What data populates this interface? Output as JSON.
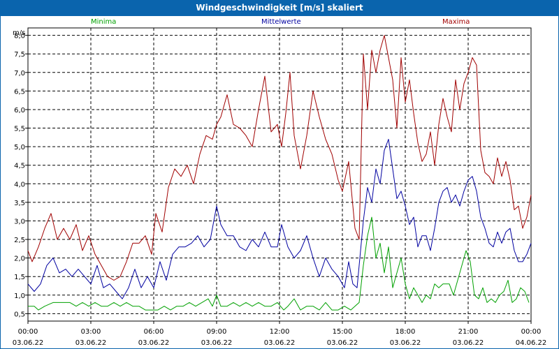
{
  "window": {
    "title": "Windgeschwindigkeit [m/s] skaliert"
  },
  "chart_data": {
    "type": "line",
    "title": "Windgeschwindigkeit [m/s] skaliert",
    "ylabel": "m/s",
    "xlabel": "",
    "ylim": [
      0.3,
      8.2
    ],
    "xlim_hours": [
      0,
      24
    ],
    "y_ticks": [
      "0,5",
      "1,0",
      "1,5",
      "2,0",
      "2,5",
      "3,0",
      "3,5",
      "4,0",
      "4,5",
      "5,0",
      "5,5",
      "6,0",
      "6,5",
      "7,0",
      "7,5",
      "8,0"
    ],
    "x_ticks": [
      {
        "time": "00:00",
        "date": "03.06.22"
      },
      {
        "time": "03:00",
        "date": "03.06.22"
      },
      {
        "time": "06:00",
        "date": "03.06.22"
      },
      {
        "time": "09:00",
        "date": "03.06.22"
      },
      {
        "time": "12:00",
        "date": "03.06.22"
      },
      {
        "time": "15:00",
        "date": "03.06.22"
      },
      {
        "time": "18:00",
        "date": "03.06.22"
      },
      {
        "time": "21:00",
        "date": "03.06.22"
      },
      {
        "time": "00:00",
        "date": "04.06.22"
      }
    ],
    "grid": true,
    "series": [
      {
        "name": "Minima",
        "color": "#00a000",
        "points": [
          [
            0,
            0.7
          ],
          [
            0.3,
            0.7
          ],
          [
            0.5,
            0.6
          ],
          [
            0.8,
            0.7
          ],
          [
            1.2,
            0.8
          ],
          [
            1.6,
            0.8
          ],
          [
            2.0,
            0.8
          ],
          [
            2.3,
            0.7
          ],
          [
            2.6,
            0.8
          ],
          [
            2.9,
            0.7
          ],
          [
            3.2,
            0.8
          ],
          [
            3.5,
            0.7
          ],
          [
            3.8,
            0.7
          ],
          [
            4.1,
            0.8
          ],
          [
            4.4,
            0.7
          ],
          [
            4.7,
            0.8
          ],
          [
            5.0,
            0.7
          ],
          [
            5.3,
            0.7
          ],
          [
            5.6,
            0.6
          ],
          [
            5.9,
            0.6
          ],
          [
            6.2,
            0.6
          ],
          [
            6.5,
            0.7
          ],
          [
            6.8,
            0.6
          ],
          [
            7.1,
            0.7
          ],
          [
            7.4,
            0.7
          ],
          [
            7.7,
            0.8
          ],
          [
            8.0,
            0.7
          ],
          [
            8.3,
            0.8
          ],
          [
            8.6,
            0.9
          ],
          [
            8.8,
            0.7
          ],
          [
            9.0,
            1.0
          ],
          [
            9.2,
            0.7
          ],
          [
            9.5,
            0.7
          ],
          [
            9.8,
            0.8
          ],
          [
            10.1,
            0.7
          ],
          [
            10.4,
            0.8
          ],
          [
            10.7,
            0.7
          ],
          [
            11.0,
            0.8
          ],
          [
            11.3,
            0.7
          ],
          [
            11.6,
            0.7
          ],
          [
            11.9,
            0.8
          ],
          [
            12.2,
            0.6
          ],
          [
            12.4,
            0.7
          ],
          [
            12.7,
            0.9
          ],
          [
            13.0,
            0.6
          ],
          [
            13.3,
            0.7
          ],
          [
            13.6,
            0.7
          ],
          [
            13.9,
            0.6
          ],
          [
            14.2,
            0.8
          ],
          [
            14.5,
            0.6
          ],
          [
            14.8,
            0.6
          ],
          [
            15.1,
            0.7
          ],
          [
            15.4,
            0.6
          ],
          [
            15.6,
            0.7
          ],
          [
            15.8,
            0.8
          ],
          [
            16.0,
            1.8
          ],
          [
            16.2,
            2.6
          ],
          [
            16.4,
            3.1
          ],
          [
            16.6,
            2.0
          ],
          [
            16.8,
            2.4
          ],
          [
            17.0,
            1.6
          ],
          [
            17.2,
            2.3
          ],
          [
            17.4,
            1.2
          ],
          [
            17.6,
            1.6
          ],
          [
            17.8,
            2.0
          ],
          [
            18.0,
            1.3
          ],
          [
            18.2,
            0.9
          ],
          [
            18.4,
            1.2
          ],
          [
            18.6,
            1.0
          ],
          [
            18.8,
            0.8
          ],
          [
            19.0,
            1.0
          ],
          [
            19.2,
            0.9
          ],
          [
            19.4,
            1.3
          ],
          [
            19.6,
            1.2
          ],
          [
            19.8,
            1.3
          ],
          [
            20.1,
            1.3
          ],
          [
            20.3,
            1.0
          ],
          [
            20.5,
            1.4
          ],
          [
            20.7,
            1.8
          ],
          [
            20.9,
            2.2
          ],
          [
            21.1,
            1.9
          ],
          [
            21.3,
            1.0
          ],
          [
            21.5,
            0.9
          ],
          [
            21.7,
            1.2
          ],
          [
            21.9,
            0.8
          ],
          [
            22.1,
            0.9
          ],
          [
            22.3,
            0.8
          ],
          [
            22.5,
            1.0
          ],
          [
            22.7,
            1.1
          ],
          [
            22.9,
            1.4
          ],
          [
            23.1,
            0.8
          ],
          [
            23.3,
            0.9
          ],
          [
            23.5,
            1.2
          ],
          [
            23.7,
            1.1
          ],
          [
            23.9,
            0.8
          ]
        ]
      },
      {
        "name": "Mittelwerte",
        "color": "#0000a0",
        "points": [
          [
            0,
            1.3
          ],
          [
            0.3,
            1.1
          ],
          [
            0.6,
            1.3
          ],
          [
            0.9,
            1.8
          ],
          [
            1.2,
            2.0
          ],
          [
            1.5,
            1.6
          ],
          [
            1.8,
            1.7
          ],
          [
            2.1,
            1.5
          ],
          [
            2.4,
            1.7
          ],
          [
            2.7,
            1.5
          ],
          [
            3.0,
            1.3
          ],
          [
            3.3,
            1.8
          ],
          [
            3.6,
            1.2
          ],
          [
            3.9,
            1.3
          ],
          [
            4.2,
            1.1
          ],
          [
            4.5,
            0.9
          ],
          [
            4.8,
            1.2
          ],
          [
            5.1,
            1.7
          ],
          [
            5.4,
            1.2
          ],
          [
            5.7,
            1.5
          ],
          [
            6.0,
            1.2
          ],
          [
            6.3,
            1.9
          ],
          [
            6.6,
            1.4
          ],
          [
            6.9,
            2.1
          ],
          [
            7.2,
            2.3
          ],
          [
            7.5,
            2.3
          ],
          [
            7.8,
            2.4
          ],
          [
            8.1,
            2.6
          ],
          [
            8.4,
            2.3
          ],
          [
            8.7,
            2.5
          ],
          [
            9.0,
            3.4
          ],
          [
            9.2,
            2.9
          ],
          [
            9.5,
            2.6
          ],
          [
            9.8,
            2.6
          ],
          [
            10.1,
            2.3
          ],
          [
            10.4,
            2.2
          ],
          [
            10.7,
            2.5
          ],
          [
            11.0,
            2.3
          ],
          [
            11.3,
            2.7
          ],
          [
            11.6,
            2.3
          ],
          [
            11.9,
            2.3
          ],
          [
            12.1,
            2.9
          ],
          [
            12.4,
            2.3
          ],
          [
            12.7,
            2.0
          ],
          [
            13.0,
            2.2
          ],
          [
            13.3,
            2.6
          ],
          [
            13.6,
            2.0
          ],
          [
            13.9,
            1.5
          ],
          [
            14.2,
            2.0
          ],
          [
            14.5,
            1.7
          ],
          [
            14.8,
            1.5
          ],
          [
            15.1,
            1.2
          ],
          [
            15.3,
            1.9
          ],
          [
            15.5,
            1.3
          ],
          [
            15.7,
            1.2
          ],
          [
            16.0,
            3.0
          ],
          [
            16.2,
            3.9
          ],
          [
            16.4,
            3.5
          ],
          [
            16.6,
            4.4
          ],
          [
            16.8,
            4.0
          ],
          [
            17.0,
            4.9
          ],
          [
            17.2,
            5.2
          ],
          [
            17.4,
            4.4
          ],
          [
            17.6,
            3.6
          ],
          [
            17.8,
            3.8
          ],
          [
            18.0,
            3.4
          ],
          [
            18.2,
            2.9
          ],
          [
            18.4,
            3.1
          ],
          [
            18.6,
            2.3
          ],
          [
            18.8,
            2.6
          ],
          [
            19.0,
            2.6
          ],
          [
            19.2,
            2.2
          ],
          [
            19.4,
            2.8
          ],
          [
            19.6,
            3.5
          ],
          [
            19.8,
            3.8
          ],
          [
            20.0,
            3.9
          ],
          [
            20.2,
            3.5
          ],
          [
            20.4,
            3.7
          ],
          [
            20.6,
            3.4
          ],
          [
            20.8,
            3.8
          ],
          [
            21.0,
            4.1
          ],
          [
            21.2,
            4.2
          ],
          [
            21.4,
            3.8
          ],
          [
            21.6,
            3.1
          ],
          [
            21.8,
            2.8
          ],
          [
            22.0,
            2.4
          ],
          [
            22.2,
            2.3
          ],
          [
            22.4,
            2.7
          ],
          [
            22.6,
            2.4
          ],
          [
            22.8,
            2.7
          ],
          [
            23.0,
            2.8
          ],
          [
            23.2,
            2.2
          ],
          [
            23.4,
            1.9
          ],
          [
            23.6,
            1.9
          ],
          [
            23.8,
            2.1
          ],
          [
            24.0,
            2.4
          ]
        ]
      },
      {
        "name": "Maxima",
        "color": "#a00000",
        "points": [
          [
            0,
            2.2
          ],
          [
            0.2,
            1.9
          ],
          [
            0.5,
            2.3
          ],
          [
            0.8,
            2.8
          ],
          [
            1.1,
            3.2
          ],
          [
            1.4,
            2.5
          ],
          [
            1.7,
            2.8
          ],
          [
            2.0,
            2.5
          ],
          [
            2.3,
            2.9
          ],
          [
            2.6,
            2.2
          ],
          [
            2.9,
            2.6
          ],
          [
            3.2,
            2.1
          ],
          [
            3.5,
            1.8
          ],
          [
            3.8,
            1.5
          ],
          [
            4.1,
            1.4
          ],
          [
            4.4,
            1.5
          ],
          [
            4.7,
            1.9
          ],
          [
            5.0,
            2.4
          ],
          [
            5.3,
            2.4
          ],
          [
            5.6,
            2.6
          ],
          [
            5.9,
            2.1
          ],
          [
            6.1,
            3.2
          ],
          [
            6.4,
            2.7
          ],
          [
            6.7,
            3.9
          ],
          [
            7.0,
            4.4
          ],
          [
            7.3,
            4.2
          ],
          [
            7.6,
            4.5
          ],
          [
            7.9,
            4.0
          ],
          [
            8.2,
            4.8
          ],
          [
            8.5,
            5.3
          ],
          [
            8.8,
            5.2
          ],
          [
            9.0,
            5.6
          ],
          [
            9.2,
            5.8
          ],
          [
            9.5,
            6.4
          ],
          [
            9.8,
            5.6
          ],
          [
            10.1,
            5.5
          ],
          [
            10.4,
            5.3
          ],
          [
            10.7,
            5.0
          ],
          [
            11.0,
            6.0
          ],
          [
            11.3,
            6.9
          ],
          [
            11.6,
            5.4
          ],
          [
            11.9,
            5.6
          ],
          [
            12.1,
            5.0
          ],
          [
            12.3,
            5.9
          ],
          [
            12.5,
            7.0
          ],
          [
            12.7,
            5.3
          ],
          [
            13.0,
            4.4
          ],
          [
            13.3,
            5.3
          ],
          [
            13.6,
            6.5
          ],
          [
            13.9,
            5.8
          ],
          [
            14.2,
            5.2
          ],
          [
            14.5,
            4.8
          ],
          [
            14.8,
            4.1
          ],
          [
            15.0,
            3.8
          ],
          [
            15.3,
            4.6
          ],
          [
            15.6,
            2.8
          ],
          [
            15.8,
            2.5
          ],
          [
            16.0,
            7.5
          ],
          [
            16.2,
            6.0
          ],
          [
            16.4,
            7.6
          ],
          [
            16.6,
            7.0
          ],
          [
            16.8,
            7.6
          ],
          [
            17.0,
            8.0
          ],
          [
            17.2,
            7.4
          ],
          [
            17.4,
            6.8
          ],
          [
            17.6,
            5.5
          ],
          [
            17.8,
            7.4
          ],
          [
            18.0,
            6.2
          ],
          [
            18.2,
            6.8
          ],
          [
            18.4,
            5.9
          ],
          [
            18.6,
            5.1
          ],
          [
            18.8,
            4.6
          ],
          [
            19.0,
            4.8
          ],
          [
            19.2,
            5.4
          ],
          [
            19.4,
            4.5
          ],
          [
            19.6,
            5.6
          ],
          [
            19.8,
            6.3
          ],
          [
            20.0,
            5.8
          ],
          [
            20.2,
            5.4
          ],
          [
            20.4,
            6.8
          ],
          [
            20.6,
            6.0
          ],
          [
            20.8,
            6.7
          ],
          [
            21.0,
            7.0
          ],
          [
            21.2,
            7.4
          ],
          [
            21.4,
            7.2
          ],
          [
            21.6,
            4.9
          ],
          [
            21.8,
            4.3
          ],
          [
            22.0,
            4.2
          ],
          [
            22.2,
            4.0
          ],
          [
            22.4,
            4.7
          ],
          [
            22.6,
            4.2
          ],
          [
            22.8,
            4.6
          ],
          [
            23.0,
            4.1
          ],
          [
            23.2,
            3.3
          ],
          [
            23.4,
            3.4
          ],
          [
            23.6,
            2.8
          ],
          [
            23.8,
            3.1
          ],
          [
            24.0,
            3.7
          ]
        ]
      }
    ]
  }
}
